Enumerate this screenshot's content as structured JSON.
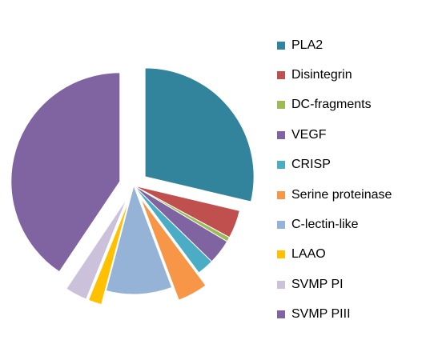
{
  "chart_data": {
    "type": "pie",
    "title": "",
    "legend_position": "right",
    "series": [
      {
        "name": "PLA2",
        "value": 28.7,
        "color": "#31849B",
        "exploded": true
      },
      {
        "name": "Disintegrin",
        "value": 4.2,
        "color": "#C0504D",
        "exploded": false
      },
      {
        "name": "DC-fragments",
        "value": 0.7,
        "color": "#9BBB59",
        "exploded": false
      },
      {
        "name": "VEGF",
        "value": 3.7,
        "color": "#8064A2",
        "exploded": false
      },
      {
        "name": "CRISP",
        "value": 2.5,
        "color": "#4BACC6",
        "exploded": false
      },
      {
        "name": "Serine proteinase",
        "value": 4.5,
        "color": "#F79646",
        "exploded": true
      },
      {
        "name": "C-lectin-like",
        "value": 9.8,
        "color": "#95B3D7",
        "exploded": false
      },
      {
        "name": "LAAO",
        "value": 2.0,
        "color": "#FFC000",
        "exploded": true
      },
      {
        "name": "SVMP PI",
        "value": 3.3,
        "color": "#CCC1DA",
        "exploded": true
      },
      {
        "name": "SVMP PIII",
        "value": 40.6,
        "color": "#8064A2",
        "exploded": true
      }
    ]
  }
}
